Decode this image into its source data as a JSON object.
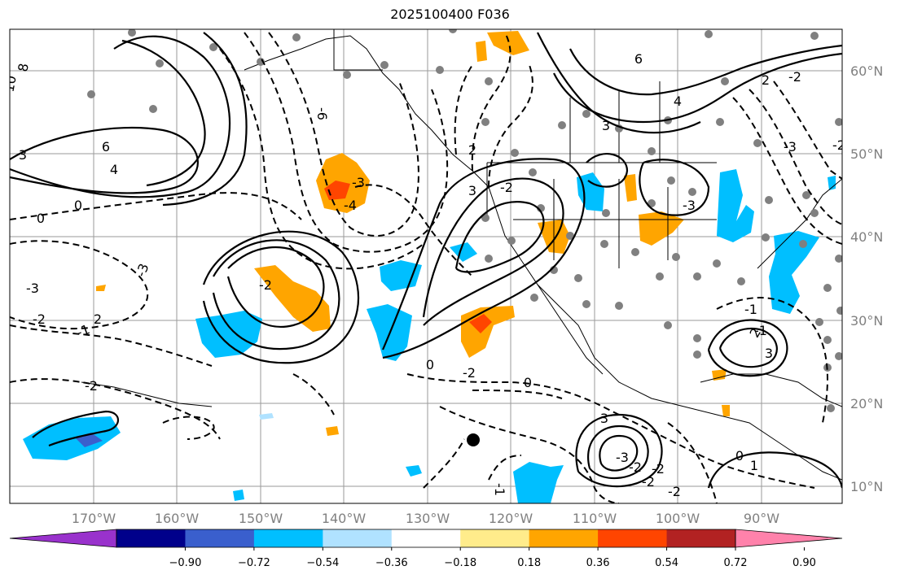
{
  "title": "2025100400 F036",
  "map": {
    "lon_labels": [
      "170°W",
      "160°W",
      "150°W",
      "140°W",
      "130°W",
      "120°W",
      "110°W",
      "100°W",
      "90°W"
    ],
    "lat_labels": [
      "60°N",
      "50°N",
      "40°N",
      "30°N",
      "20°N",
      "10°N"
    ],
    "contour_labels": [
      "8",
      "10",
      "6",
      "4",
      "3",
      "0",
      "0",
      "-3",
      "-2",
      "-1",
      "2",
      "-2",
      "-3",
      "-4",
      "-6",
      "3",
      "-2",
      "2",
      "3",
      "4",
      "6",
      "2",
      "-2",
      "-3",
      "-2",
      "-1",
      "2",
      "3",
      "-1",
      "-3",
      "3",
      "-2",
      "-2",
      "0",
      "0",
      "-2",
      "-1",
      "-2",
      "-2",
      "-3",
      "0",
      "1",
      "-2",
      "-3"
    ],
    "marker": "black-dot"
  },
  "colorbar": {
    "ticks": [
      "−0.90",
      "−0.72",
      "−0.54",
      "−0.36",
      "−0.18",
      "0.18",
      "0.36",
      "0.54",
      "0.72",
      "0.90"
    ],
    "colors": [
      "#9932cc",
      "#00008b",
      "#3a5fcd",
      "#00bfff",
      "#b0e2ff",
      "#ffffff",
      "#ffec8b",
      "#ffa500",
      "#ff4500",
      "#b22222",
      "#ff82ab"
    ]
  }
}
